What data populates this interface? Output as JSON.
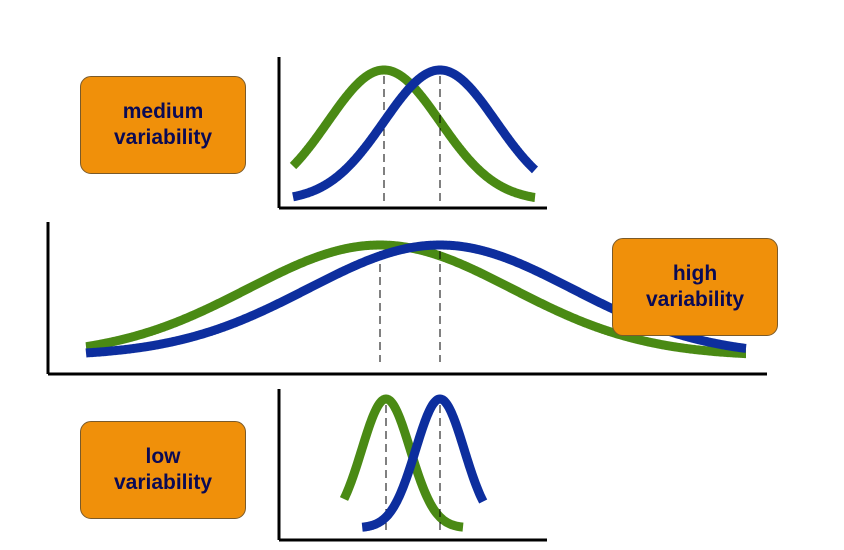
{
  "labels": {
    "medium": {
      "line1": "medium",
      "line2": "variability"
    },
    "high": {
      "line1": "high",
      "line2": "variability"
    },
    "low": {
      "line1": "low",
      "line2": "variability"
    }
  },
  "colors": {
    "green_curve": "#4a8a14",
    "blue_curve": "#0d2e9e",
    "label_fill": "#f0900a",
    "label_text": "#0a0a55",
    "axis": "#000000"
  },
  "chart_data": [
    {
      "type": "line",
      "panel": "medium",
      "series": [
        {
          "color": "green",
          "mean": 0.0,
          "sd": 1.0
        },
        {
          "color": "blue",
          "mean": 1.0,
          "sd": 1.0
        }
      ]
    },
    {
      "type": "line",
      "panel": "high",
      "series": [
        {
          "color": "green",
          "mean": 0.0,
          "sd": 2.2
        },
        {
          "color": "blue",
          "mean": 1.0,
          "sd": 2.2
        }
      ]
    },
    {
      "type": "line",
      "panel": "low",
      "series": [
        {
          "color": "green",
          "mean": 0.0,
          "sd": 0.45
        },
        {
          "color": "blue",
          "mean": 1.0,
          "sd": 0.45
        }
      ]
    }
  ]
}
